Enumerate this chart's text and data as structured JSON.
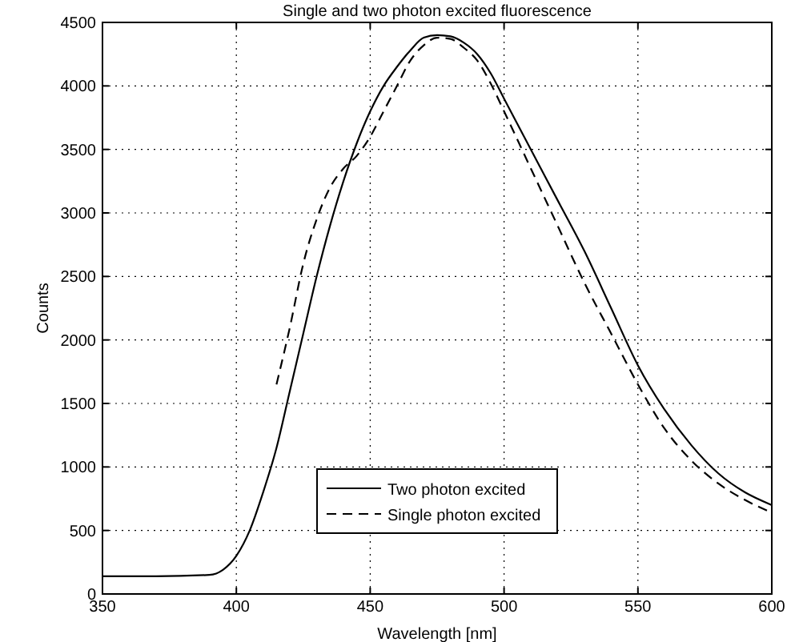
{
  "chart_data": {
    "type": "line",
    "title": "Single and two photon excited fluorescence",
    "xlabel": "Wavelength [nm]",
    "ylabel": "Counts",
    "xlim": [
      350,
      600
    ],
    "xticks": [
      350,
      400,
      450,
      500,
      550,
      600
    ],
    "ylim": [
      0,
      4500
    ],
    "yticks": [
      0,
      500,
      1000,
      1500,
      2000,
      2500,
      3000,
      3500,
      4000,
      4500
    ],
    "grid": true,
    "legend": "bottom",
    "series": [
      {
        "name": "Two photon excited",
        "color": "#000000",
        "line_style": "solid",
        "x": [
          350,
          370,
          390,
          395,
          400,
          405,
          410,
          415,
          420,
          425,
          430,
          435,
          440,
          445,
          450,
          455,
          460,
          465,
          470,
          475,
          480,
          485,
          490,
          495,
          500,
          510,
          520,
          530,
          540,
          550,
          560,
          570,
          580,
          590,
          600
        ],
        "values": [
          140,
          140,
          150,
          190,
          300,
          500,
          800,
          1150,
          1600,
          2050,
          2500,
          2900,
          3250,
          3550,
          3800,
          4000,
          4150,
          4280,
          4380,
          4400,
          4390,
          4340,
          4250,
          4100,
          3900,
          3500,
          3100,
          2700,
          2250,
          1800,
          1450,
          1170,
          950,
          800,
          700
        ]
      },
      {
        "name": "Single photon excited",
        "color": "#000000",
        "line_style": "dashed",
        "x": [
          415,
          420,
          425,
          430,
          435,
          440,
          445,
          450,
          455,
          460,
          465,
          470,
          475,
          480,
          485,
          490,
          495,
          500,
          510,
          520,
          530,
          540,
          550,
          560,
          570,
          580,
          590,
          600
        ],
        "values": [
          1650,
          2100,
          2600,
          2950,
          3200,
          3350,
          3450,
          3600,
          3800,
          4000,
          4200,
          4320,
          4380,
          4370,
          4300,
          4200,
          4020,
          3800,
          3350,
          2900,
          2450,
          2050,
          1650,
          1300,
          1050,
          870,
          740,
          640
        ]
      }
    ]
  }
}
